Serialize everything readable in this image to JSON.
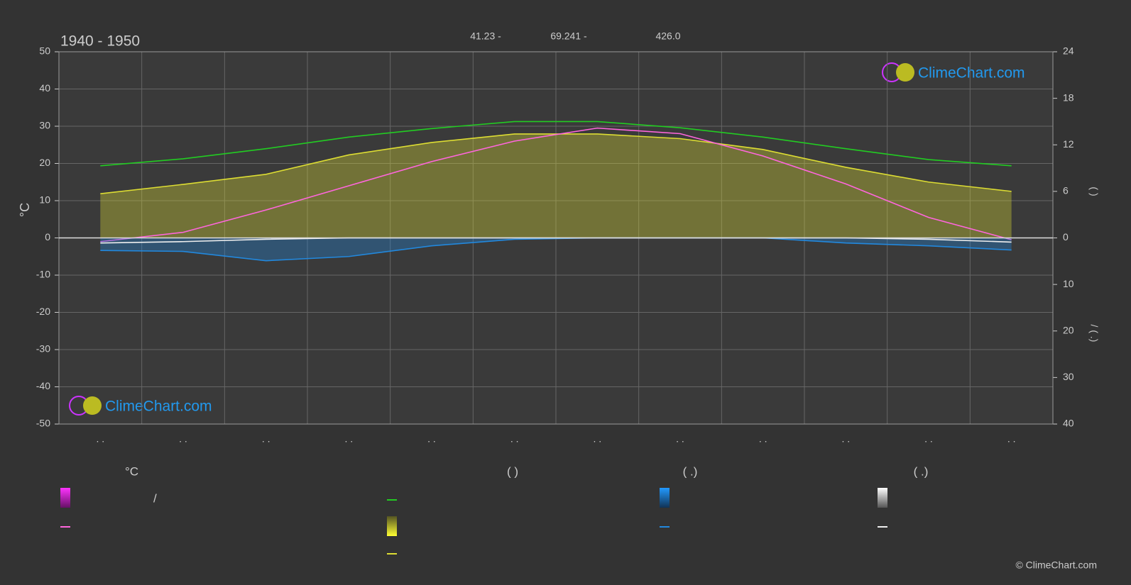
{
  "chart_data": {
    "type": "line",
    "title": "1940 - 1950",
    "header_values": [
      "41.23 -",
      "69.241 -",
      "426.0"
    ],
    "ylabel": "°C",
    "y2label": "(      )",
    "y3label": "/    (  .)",
    "logo": "ClimeChart.com",
    "copyright": "© ClimeChart.com",
    "categories": [
      ". .",
      ". .",
      ". .",
      ". .",
      ". .",
      ". .",
      ". .",
      ". .",
      ". .",
      ". .",
      ". .",
      ". ."
    ],
    "ylim": [
      -50,
      50
    ],
    "yticks": [
      50,
      40,
      30,
      20,
      10,
      0,
      -10,
      -20,
      -30,
      -40,
      -50
    ],
    "y2lim": [
      -24,
      24
    ],
    "y2ticks": [
      24,
      18,
      12,
      6,
      0
    ],
    "y3lim": [
      40,
      -40
    ],
    "y3ticks": [
      10,
      20,
      30,
      40
    ],
    "grid": true,
    "series": [
      {
        "color": "#22cc22",
        "axis": "y2",
        "values": [
          9.3,
          10.2,
          11.5,
          13.0,
          14.1,
          15.0,
          15.0,
          14.2,
          13.0,
          11.5,
          10.1,
          9.3
        ]
      },
      {
        "color": "#dddd33",
        "axis": "y2",
        "area": true,
        "values": [
          5.7,
          6.9,
          8.2,
          10.7,
          12.3,
          13.4,
          13.4,
          12.8,
          11.4,
          9.1,
          7.2,
          6.0
        ]
      },
      {
        "color": "#ff66dd",
        "axis": "y",
        "values": [
          -1,
          1.5,
          7.5,
          14,
          20.5,
          26,
          29.5,
          28,
          22,
          14.5,
          5.5,
          -0.5
        ]
      },
      {
        "color": "#2288dd",
        "axis": "y3",
        "area": true,
        "values": [
          2.7,
          2.9,
          4.9,
          4.0,
          1.7,
          0.3,
          0,
          0,
          0,
          1.1,
          1.7,
          2.6
        ]
      },
      {
        "color": "#eeeeee",
        "axis": "y3",
        "values": [
          1.1,
          0.8,
          0.3,
          0,
          0,
          0,
          0,
          0,
          0,
          0,
          0.3,
          0.9
        ]
      }
    ],
    "legend": {
      "headers": [
        "°C",
        "(       )",
        "(   .)",
        "(   .)"
      ],
      "slash": "/"
    }
  }
}
